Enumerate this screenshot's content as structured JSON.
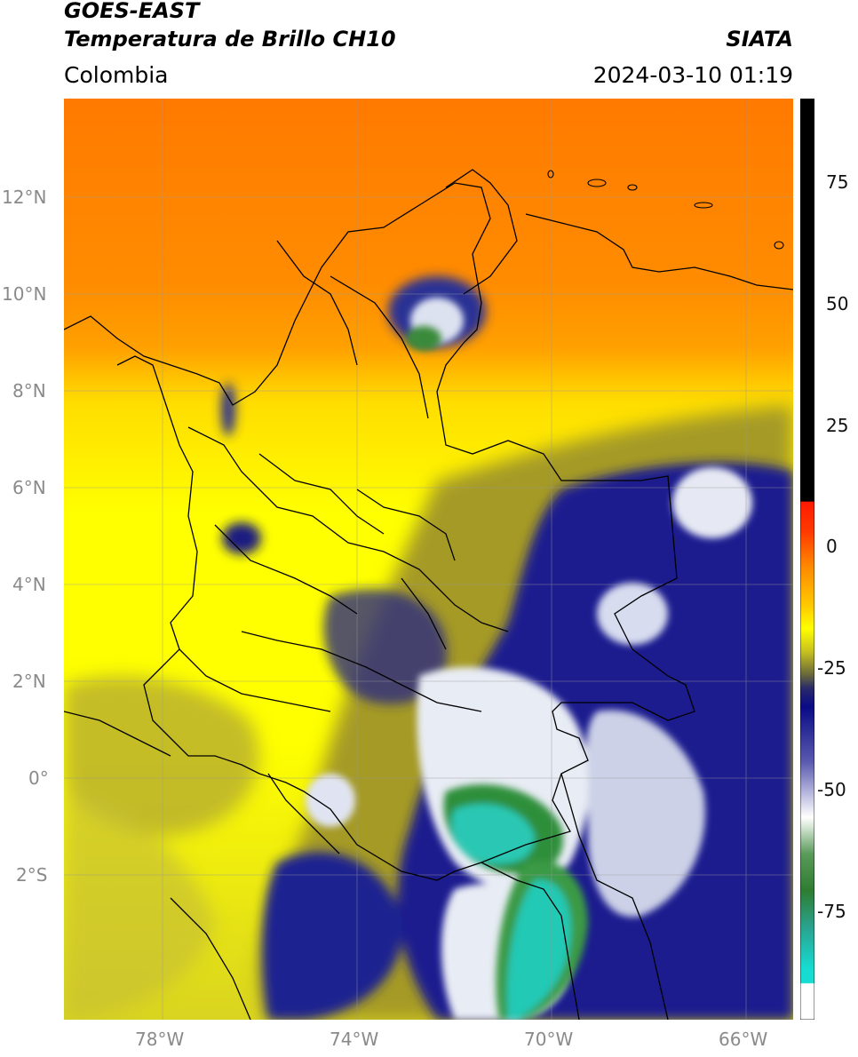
{
  "header": {
    "title_line1": "GOES-EAST",
    "title_line2": "Temperatura de Brillo CH10",
    "source": "SIATA",
    "region": "Colombia",
    "timestamp": "2024-03-10 01:19"
  },
  "map": {
    "lon_ticks": [
      "78°W",
      "74°W",
      "70°W",
      "66°W"
    ],
    "lat_ticks": [
      "12°N",
      "10°N",
      "8°N",
      "6°N",
      "4°N",
      "2°N",
      "0°",
      "2°S"
    ]
  },
  "colorbar": {
    "ticks": [
      "75",
      "50",
      "25",
      "0",
      "-25",
      "-50",
      "-75"
    ],
    "colors": {
      "black": "#000000",
      "red": "#e8200c",
      "orange": "#ff8c00",
      "yellow": "#ffff00",
      "olive": "#7d7a2c",
      "navy": "#14148c",
      "white": "#ffffff",
      "green": "#2e7d32",
      "cyan": "#16dcd2"
    }
  }
}
